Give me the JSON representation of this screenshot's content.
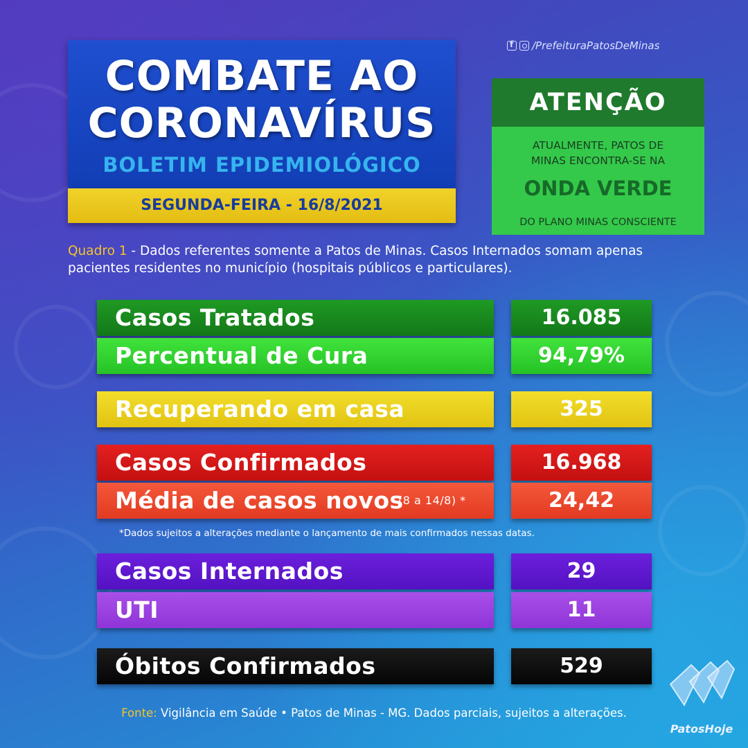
{
  "header": {
    "title_line1": "COMBATE AO",
    "title_line2": "CORONAVÍRUS",
    "subtitle": "BOLETIM EPIDEMIOLÓGICO",
    "date": "SEGUNDA-FEIRA - 16/8/2021"
  },
  "social": {
    "handle": "/PrefeituraPatosDeMinas",
    "icons": [
      "facebook-icon",
      "instagram-icon"
    ]
  },
  "attention": {
    "heading": "ATENÇÃO",
    "line1": "ATUALMENTE, PATOS DE",
    "line2": "MINAS ENCONTRA-SE NA",
    "wave": "ONDA VERDE",
    "line3": "DO PLANO MINAS CONSCIENTE"
  },
  "note": {
    "label": "Quadro 1",
    "text": " - Dados referentes somente a Patos de Minas. Casos Internados somam apenas pacientes residentes no município (hospitais públicos e particulares)."
  },
  "rows": [
    {
      "label": "Casos Tratados",
      "value": "16.085",
      "color": "#137818"
    },
    {
      "label": "Percentual de Cura",
      "value": "94,79%",
      "color": "#26c226"
    },
    {
      "label": "Recuperando em casa",
      "value": "325",
      "color": "#e2c312"
    },
    {
      "label": "Casos Confirmados",
      "value": "16.968",
      "color": "#c41010"
    },
    {
      "label": "Média de casos novos",
      "sublabel": "(8 a 14/8) *",
      "value": "24,42",
      "color": "#e23a22"
    },
    {
      "label": "Casos Internados",
      "value": "29",
      "color": "#5312c2"
    },
    {
      "label": "UTI",
      "value": "11",
      "color": "#8f35d8"
    },
    {
      "label": "Óbitos Confirmados",
      "value": "529",
      "color": "#050505"
    }
  ],
  "footnote": "*Dados sujeitos a alterações mediante o lançamento de mais confirmados nessas datas.",
  "source": {
    "label": "Fonte:",
    "text": " Vigilância em Saúde • Patos de Minas - MG. Dados parciais, sujeitos a alterações."
  },
  "brand": {
    "name": "PatosHoje",
    "icon": "swim-fins-icon"
  }
}
